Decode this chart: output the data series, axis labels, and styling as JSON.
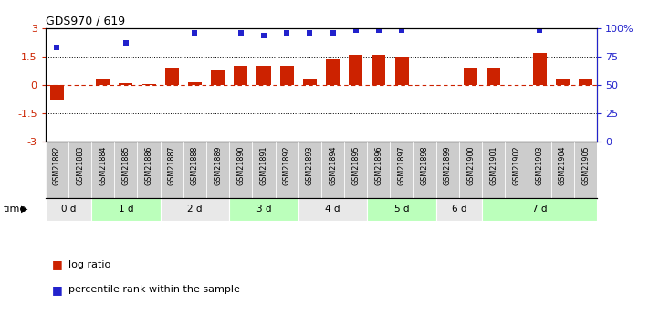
{
  "title": "GDS970 / 619",
  "samples": [
    "GSM21882",
    "GSM21883",
    "GSM21884",
    "GSM21885",
    "GSM21886",
    "GSM21887",
    "GSM21888",
    "GSM21889",
    "GSM21890",
    "GSM21891",
    "GSM21892",
    "GSM21893",
    "GSM21894",
    "GSM21895",
    "GSM21896",
    "GSM21897",
    "GSM21898",
    "GSM21899",
    "GSM21900",
    "GSM21901",
    "GSM21902",
    "GSM21903",
    "GSM21904",
    "GSM21905"
  ],
  "log_ratio": [
    -0.85,
    0.0,
    0.3,
    0.1,
    0.05,
    0.85,
    0.15,
    0.75,
    1.0,
    1.0,
    1.0,
    0.3,
    1.35,
    1.6,
    1.6,
    1.5,
    0.0,
    0.0,
    0.9,
    0.9,
    0.0,
    1.7,
    0.3,
    0.3
  ],
  "percentile_rank": [
    2.0,
    0.0,
    0.0,
    2.25,
    0.0,
    0.0,
    2.75,
    0.0,
    2.75,
    2.6,
    2.75,
    2.75,
    2.75,
    2.9,
    2.9,
    2.9,
    0.0,
    0.0,
    0.0,
    0.0,
    0.0,
    2.9,
    0.0,
    0.0
  ],
  "time_groups": [
    {
      "label": "0 d",
      "start": 0,
      "end": 2,
      "color": "#e8e8e8"
    },
    {
      "label": "1 d",
      "start": 2,
      "end": 5,
      "color": "#bbffbb"
    },
    {
      "label": "2 d",
      "start": 5,
      "end": 8,
      "color": "#e8e8e8"
    },
    {
      "label": "3 d",
      "start": 8,
      "end": 11,
      "color": "#bbffbb"
    },
    {
      "label": "4 d",
      "start": 11,
      "end": 14,
      "color": "#e8e8e8"
    },
    {
      "label": "5 d",
      "start": 14,
      "end": 17,
      "color": "#bbffbb"
    },
    {
      "label": "6 d",
      "start": 17,
      "end": 19,
      "color": "#e8e8e8"
    },
    {
      "label": "7 d",
      "start": 19,
      "end": 24,
      "color": "#bbffbb"
    }
  ],
  "ylim": [
    -3,
    3
  ],
  "y2lim": [
    0,
    100
  ],
  "yticks": [
    -3,
    -1.5,
    0,
    1.5,
    3
  ],
  "y2ticks": [
    0,
    25,
    50,
    75,
    100
  ],
  "dotted_lines": [
    -1.5,
    1.5
  ],
  "bar_color": "#cc2200",
  "dot_color": "#2222cc",
  "background_color": "#ffffff",
  "label_bg_color": "#cccccc",
  "legend_bar_label": "log ratio",
  "legend_dot_label": "percentile rank within the sample",
  "time_label": "time",
  "bar_width": 0.6
}
